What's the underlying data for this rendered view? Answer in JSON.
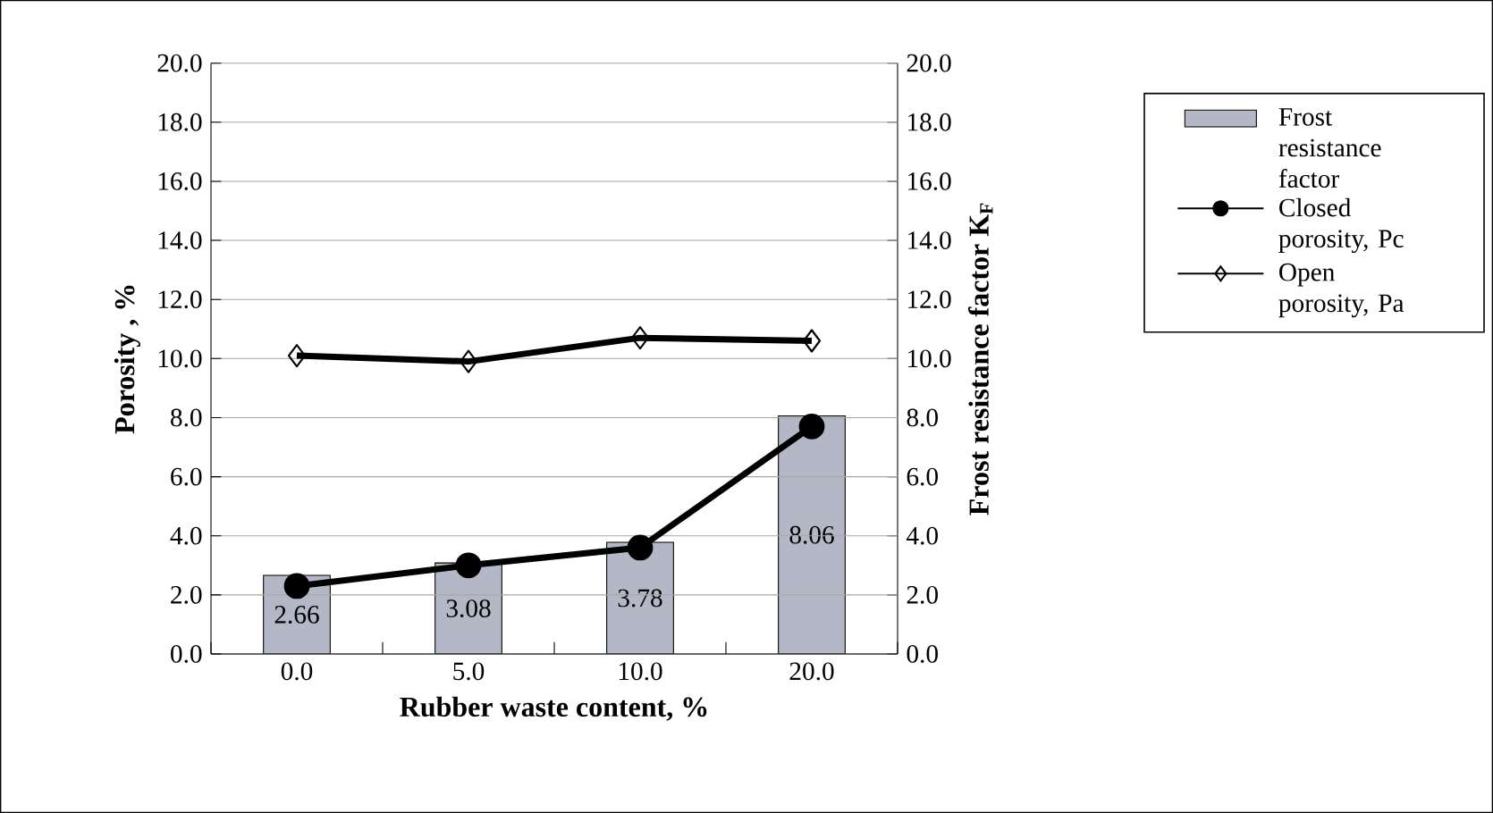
{
  "chart_data": {
    "type": "bar",
    "xlabel": "Rubber waste content, %",
    "ylabel": "Porosity ,  %",
    "y2label": "Frost resistance factor K$_{F}$",
    "categories": [
      "0.0",
      "5.0",
      "10.0",
      "20.0"
    ],
    "series": [
      {
        "name": "Frost resistance factor",
        "type": "bar",
        "axis": "y2",
        "color": "#b4b8c6",
        "values": [
          2.66,
          3.08,
          3.78,
          8.06
        ],
        "value_labels": [
          "2.66",
          "3.08",
          "3.78",
          "8.06"
        ]
      },
      {
        "name": "Closed porosity, Pc",
        "type": "line",
        "marker": "circle",
        "color": "#000000",
        "values": [
          2.3,
          3.0,
          3.6,
          7.7
        ]
      },
      {
        "name": "Open porosity, Pa",
        "type": "line",
        "marker": "diamond",
        "color": "#000000",
        "values": [
          10.1,
          9.9,
          10.7,
          10.6
        ]
      }
    ],
    "ylim": [
      0,
      20
    ],
    "yticks": [
      {
        "value": 0,
        "label": "0.0"
      },
      {
        "value": 2,
        "label": "2.0"
      },
      {
        "value": 4,
        "label": "4.0"
      },
      {
        "value": 6,
        "label": "6.0"
      },
      {
        "value": 8,
        "label": "8.0"
      },
      {
        "value": 10,
        "label": "10.0"
      },
      {
        "value": 12,
        "label": "12.0"
      },
      {
        "value": 14,
        "label": "14.0"
      },
      {
        "value": 16,
        "label": "16.0"
      },
      {
        "value": 18,
        "label": "18.0"
      },
      {
        "value": 20,
        "label": "20.0"
      }
    ],
    "y2lim": [
      0,
      20
    ],
    "y2ticks": [
      {
        "value": 0,
        "label": "0.0"
      },
      {
        "value": 2,
        "label": "2.0"
      },
      {
        "value": 4,
        "label": "4.0"
      },
      {
        "value": 6,
        "label": "6.0"
      },
      {
        "value": 8,
        "label": "8.0"
      },
      {
        "value": 10,
        "label": "10.0"
      },
      {
        "value": 12,
        "label": "12.0"
      },
      {
        "value": 14,
        "label": "14.0"
      },
      {
        "value": 16,
        "label": "16.0"
      },
      {
        "value": 18,
        "label": "18.0"
      },
      {
        "value": 20,
        "label": "20.0"
      }
    ],
    "grid": "y",
    "legend": "right"
  }
}
